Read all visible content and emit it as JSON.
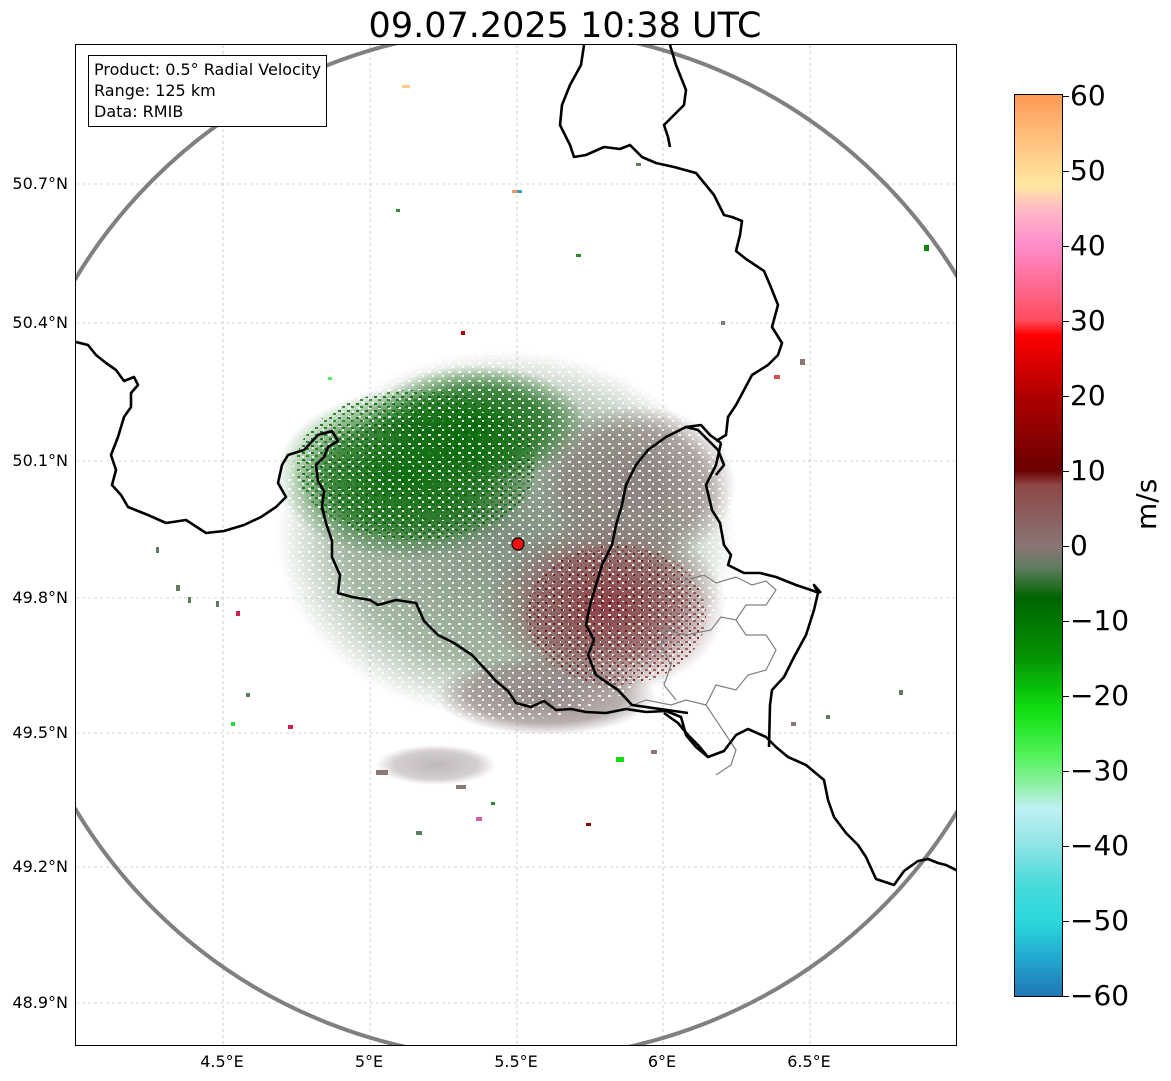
{
  "map": {
    "title": "09.07.2025 10:38 UTC",
    "info": {
      "product": "Product: 0.5° Radial Velocity",
      "range": "Range: 125 km",
      "source": "Data: RMIB"
    },
    "latitude_labels": [
      "50.7°N",
      "50.4°N",
      "50.1°N",
      "49.8°N",
      "49.5°N",
      "49.2°N",
      "48.9°N"
    ],
    "longitude_labels": [
      "4.5°E",
      "5°E",
      "5.5°E",
      "6°E",
      "6.5°E"
    ],
    "radar_site": {
      "name": "radar-site",
      "lon": 5.505,
      "lat": 49.914
    },
    "range_ring_color": "#808080",
    "border_color": "#000000",
    "grid_color": "#b0b0b0"
  },
  "colorbar": {
    "label": "m/s",
    "min": -60,
    "max": 60,
    "ticks": [
      "60",
      "50",
      "40",
      "30",
      "20",
      "10",
      "0",
      "−10",
      "−20",
      "−30",
      "−40",
      "−50",
      "−60"
    ],
    "stops": [
      {
        "v": -60,
        "c": "#1f77b4"
      },
      {
        "v": -55,
        "c": "#22a8d0"
      },
      {
        "v": -50,
        "c": "#2ad8dc"
      },
      {
        "v": -45,
        "c": "#4adada"
      },
      {
        "v": -40,
        "c": "#8ee4e6"
      },
      {
        "v": -35,
        "c": "#bff0f2"
      },
      {
        "v": -32,
        "c": "#90f0a8"
      },
      {
        "v": -28,
        "c": "#52f25a"
      },
      {
        "v": -22,
        "c": "#10e010"
      },
      {
        "v": -15,
        "c": "#049404"
      },
      {
        "v": -7,
        "c": "#006400"
      },
      {
        "v": -3,
        "c": "#5d7d5d"
      },
      {
        "v": 0,
        "c": "#8a7575"
      },
      {
        "v": 8,
        "c": "#8e4747"
      },
      {
        "v": 10,
        "c": "#6b0000"
      },
      {
        "v": 20,
        "c": "#b00000"
      },
      {
        "v": 28,
        "c": "#ff0000"
      },
      {
        "v": 30,
        "c": "#ff4d5e"
      },
      {
        "v": 40,
        "c": "#ff8ccc"
      },
      {
        "v": 45,
        "c": "#ffbcc4"
      },
      {
        "v": 48,
        "c": "#ffe8a0"
      },
      {
        "v": 55,
        "c": "#ffbb78"
      },
      {
        "v": 60,
        "c": "#ff9955"
      }
    ]
  }
}
